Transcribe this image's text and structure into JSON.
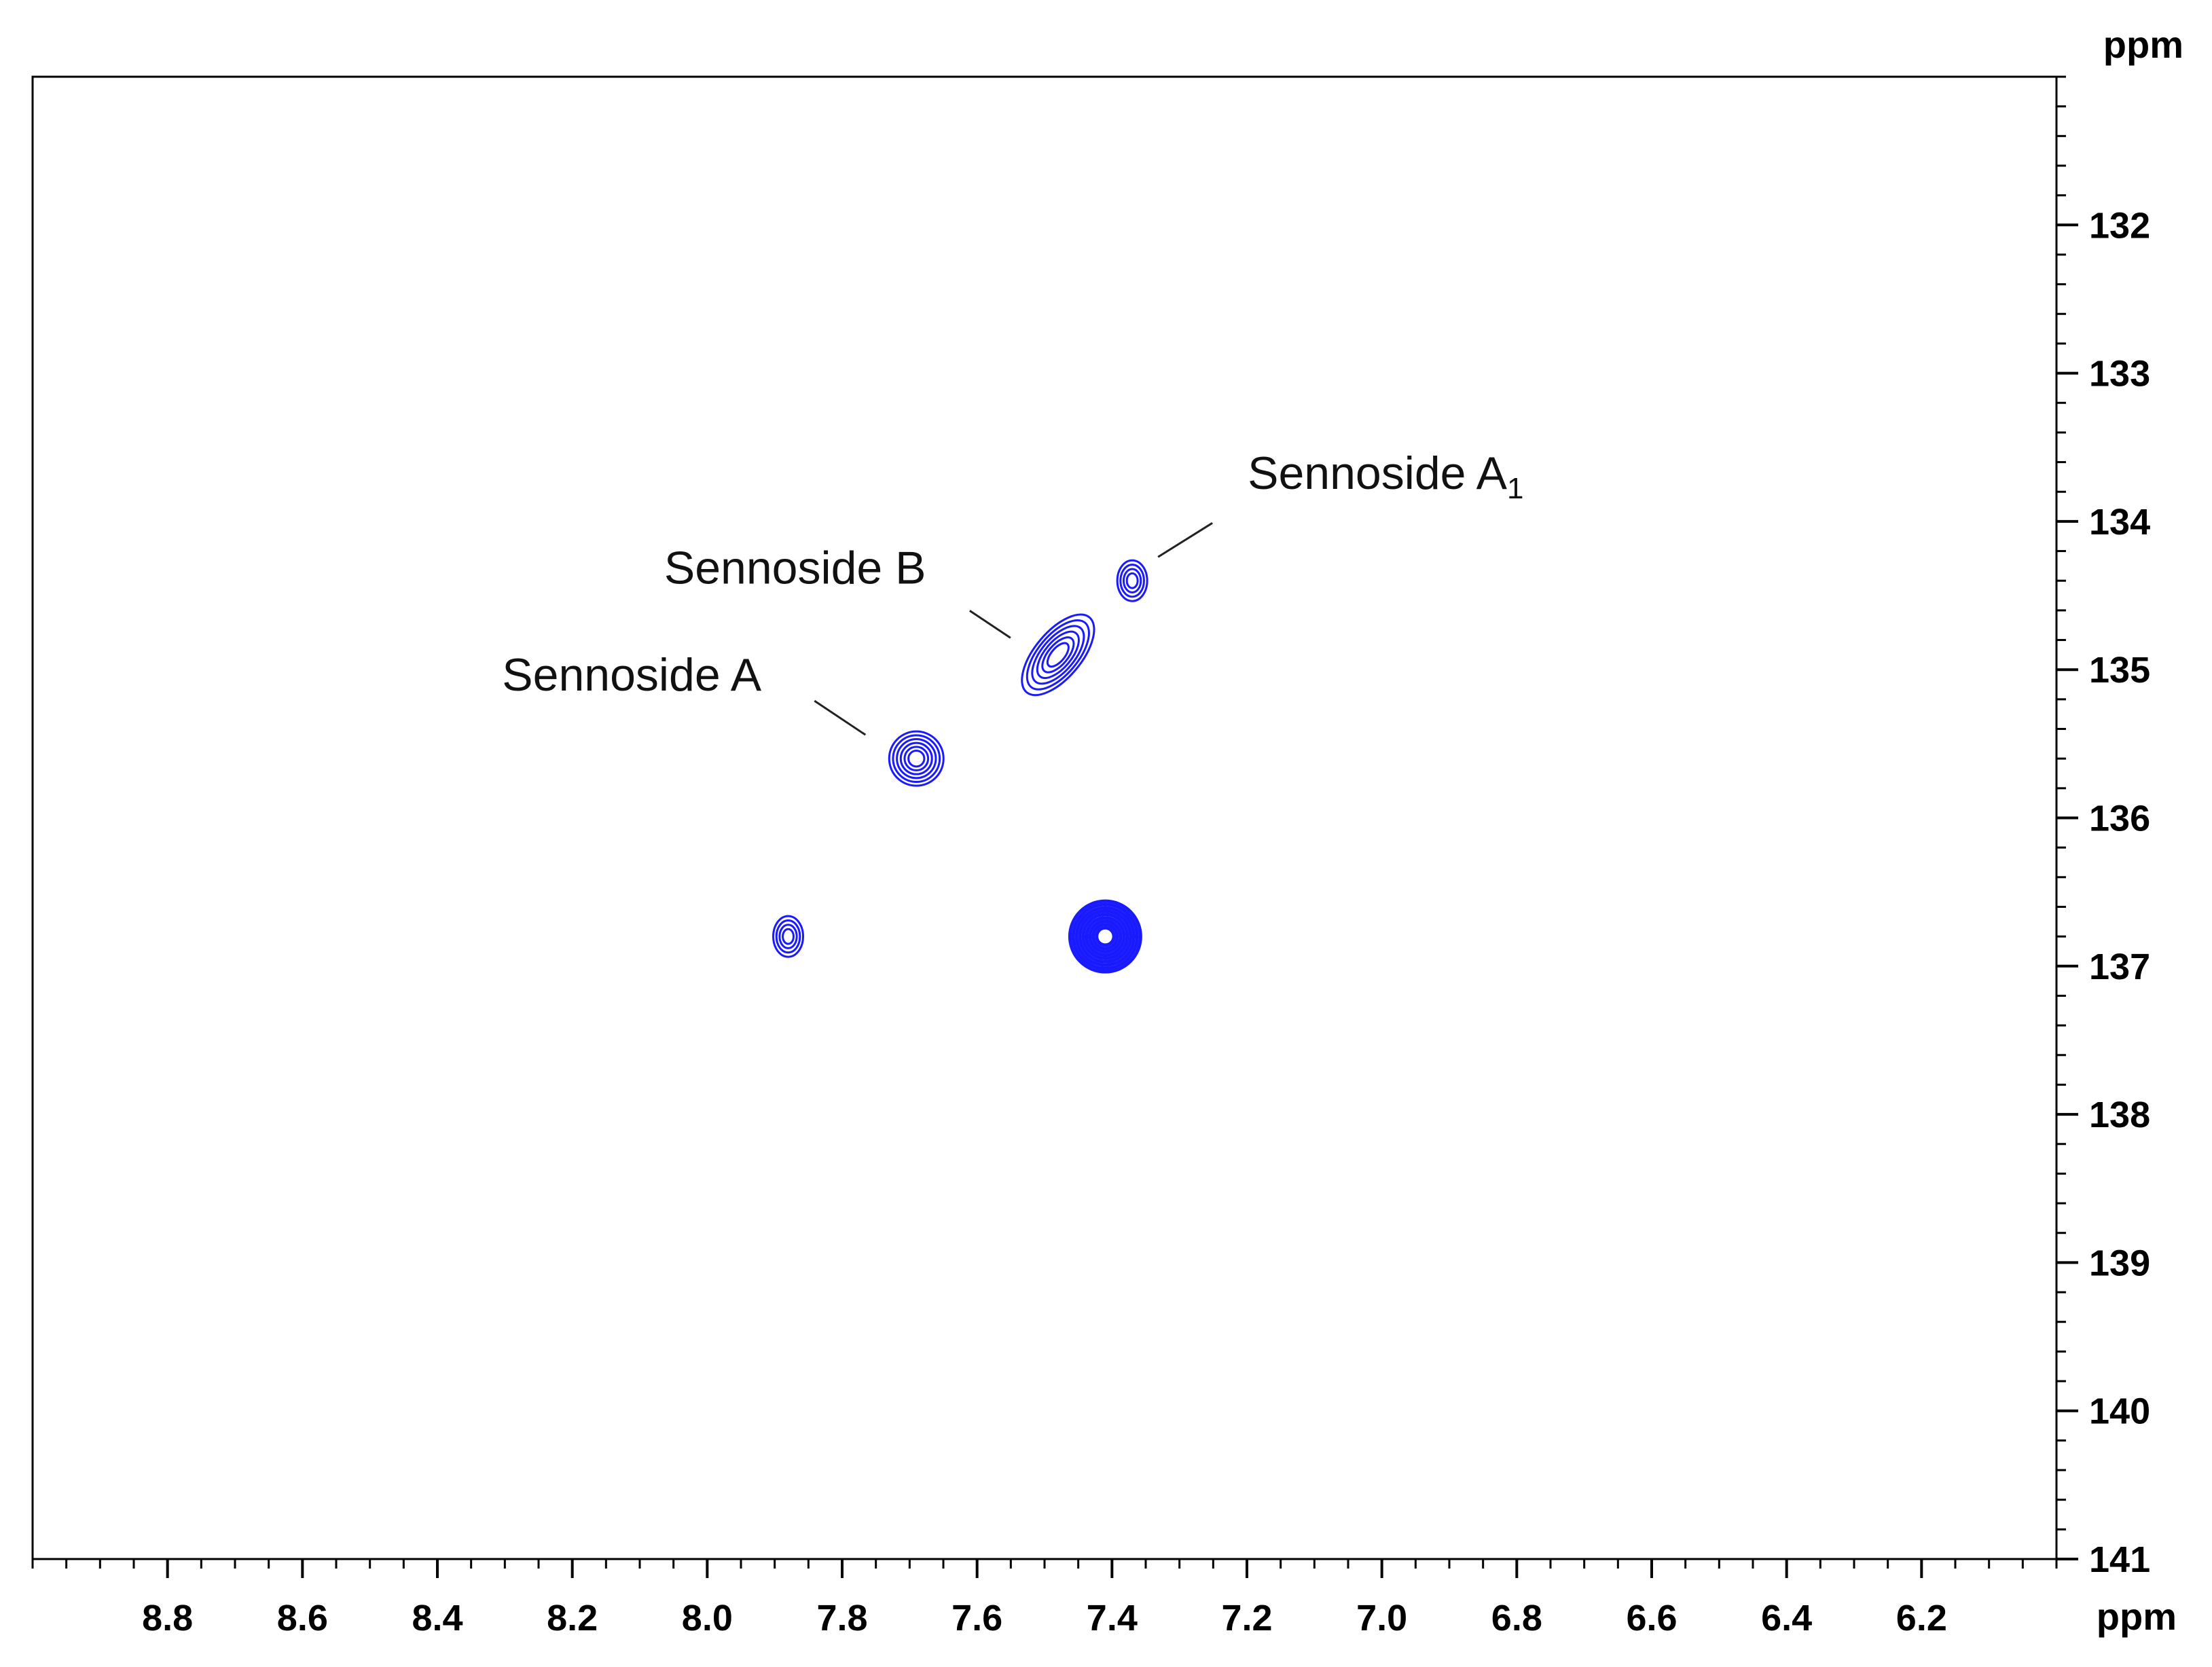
{
  "chart_data": {
    "type": "scatter",
    "title": "",
    "xlabel": "ppm",
    "ylabel": "ppm",
    "x_reversed": true,
    "y_reversed": true,
    "xlim": [
      9.0,
      6.0
    ],
    "ylim": [
      131,
      141
    ],
    "x_ticks": [
      8.8,
      8.6,
      8.4,
      8.2,
      8.0,
      7.8,
      7.6,
      7.4,
      7.2,
      7.0,
      6.8,
      6.6,
      6.4,
      6.2
    ],
    "x_tick_labels": [
      "8.8",
      "8.6",
      "8.4",
      "8.2",
      "8.0",
      "7.8",
      "7.6",
      "7.4",
      "7.2",
      "7.0",
      "6.8",
      "6.6",
      "6.4",
      "6.2"
    ],
    "y_ticks": [
      132,
      133,
      134,
      135,
      136,
      137,
      138,
      139,
      140,
      141
    ],
    "y_tick_labels": [
      "132",
      "133",
      "134",
      "135",
      "136",
      "137",
      "138",
      "139",
      "140",
      "141"
    ],
    "grid": false,
    "peak_color": "#1a1aff",
    "peaks": [
      {
        "x": 7.37,
        "y": 134.4,
        "size": "small",
        "shape": "round"
      },
      {
        "x": 7.48,
        "y": 134.9,
        "size": "medium",
        "shape": "elongated"
      },
      {
        "x": 7.69,
        "y": 135.6,
        "size": "medium",
        "shape": "round"
      },
      {
        "x": 7.88,
        "y": 136.8,
        "size": "small",
        "shape": "round"
      },
      {
        "x": 7.41,
        "y": 136.8,
        "size": "large",
        "shape": "round"
      }
    ],
    "annotations": [
      {
        "text": "Sennoside A",
        "subscript": "",
        "peak_index": 2
      },
      {
        "text": "Sennoside B",
        "subscript": "",
        "peak_index": 1
      },
      {
        "text": "Sennoside A",
        "subscript": "1",
        "peak_index": 0
      }
    ]
  }
}
